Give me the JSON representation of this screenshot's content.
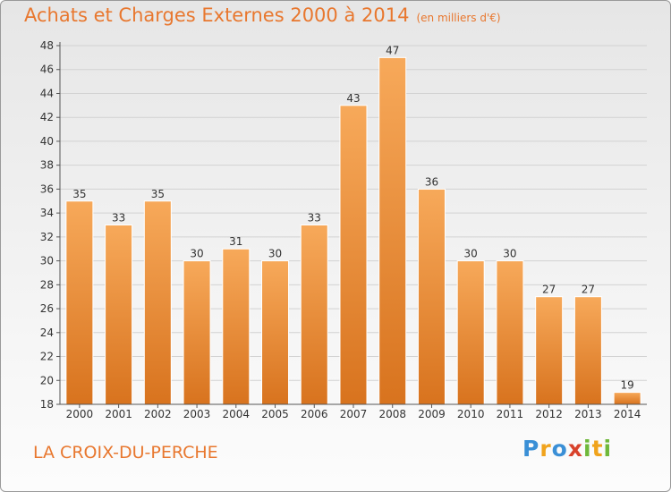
{
  "header": {
    "title": "Achats et Charges Externes 2000 à 2014",
    "subtitle": "(en milliers d'€)"
  },
  "footer": {
    "town": "LA CROIX-DU-PERCHE",
    "logo": {
      "letters": [
        "P",
        "r",
        "o",
        "x",
        "i",
        "t",
        "i"
      ],
      "colors": [
        "#3a8fd6",
        "#f0a31c",
        "#3a8fd6",
        "#d8422b",
        "#6fb83a",
        "#f0a31c",
        "#6fb83a"
      ]
    }
  },
  "colors": {
    "bar": "#ef8a30",
    "bar_light": "#f7a95a",
    "bar_dark": "#d8731e",
    "accent": "#e8772e"
  },
  "chart_data": {
    "type": "bar",
    "categories": [
      "2000",
      "2001",
      "2002",
      "2003",
      "2004",
      "2005",
      "2006",
      "2007",
      "2008",
      "2009",
      "2010",
      "2011",
      "2012",
      "2013",
      "2014"
    ],
    "values": [
      35,
      33,
      35,
      30,
      31,
      30,
      33,
      43,
      47,
      36,
      30,
      30,
      27,
      27,
      19
    ],
    "title": "Achats et Charges Externes 2000 à 2014",
    "subtitle": "(en milliers d'€)",
    "xlabel": "",
    "ylabel": "",
    "ylim": [
      18,
      48
    ],
    "yticks": [
      18,
      20,
      22,
      24,
      26,
      28,
      30,
      32,
      34,
      36,
      38,
      40,
      42,
      44,
      46,
      48
    ],
    "grid": true,
    "legend": "none"
  }
}
